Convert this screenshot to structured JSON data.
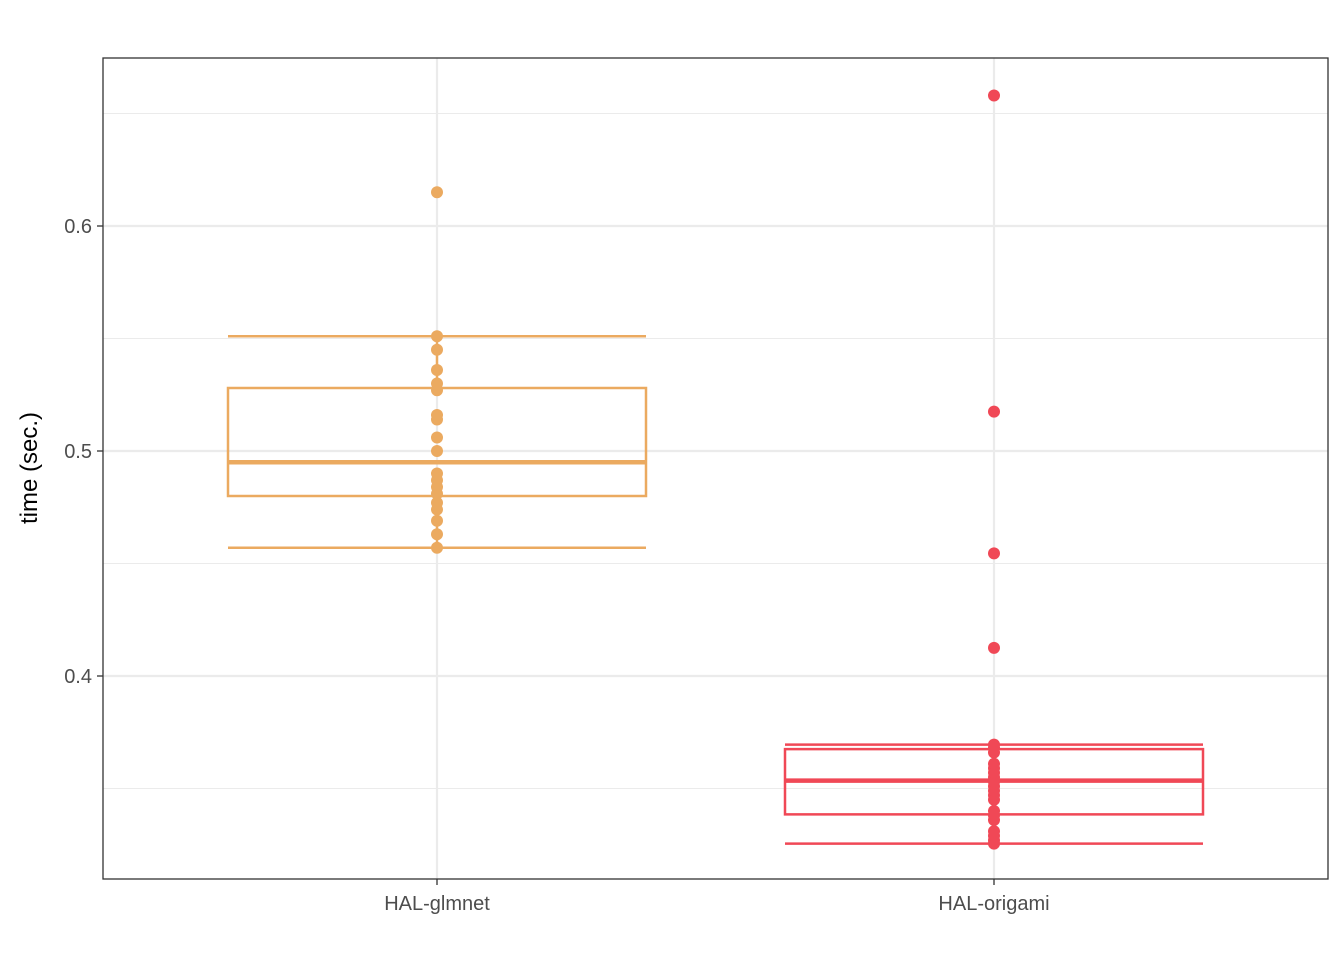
{
  "chart_data": {
    "type": "box",
    "title": "",
    "xlabel": "",
    "ylabel": "time (sec.)",
    "ylim": [
      0.32,
      0.684
    ],
    "yticks": [
      0.4,
      0.5,
      0.6
    ],
    "ytick_labels": [
      "0.4",
      "0.5",
      "0.6"
    ],
    "grid": true,
    "legend": "none",
    "categories": [
      "HAL-glmnet",
      "HAL-origami"
    ],
    "series": [
      {
        "color": "#EBAA60",
        "box": {
          "whisker_low": 0.457,
          "q1": 0.48,
          "median": 0.495,
          "q3": 0.528,
          "whisker_high": 0.551
        },
        "points": [
          0.457,
          0.463,
          0.469,
          0.474,
          0.477,
          0.481,
          0.484,
          0.487,
          0.49,
          0.5,
          0.506,
          0.514,
          0.516,
          0.527,
          0.53,
          0.536,
          0.545,
          0.551,
          0.615
        ]
      },
      {
        "color": "#F04856",
        "box": {
          "whisker_low": 0.3255,
          "q1": 0.3385,
          "median": 0.3535,
          "q3": 0.3675,
          "whisker_high": 0.3695
        },
        "points": [
          0.3255,
          0.327,
          0.329,
          0.331,
          0.336,
          0.338,
          0.34,
          0.345,
          0.347,
          0.349,
          0.351,
          0.353,
          0.355,
          0.357,
          0.359,
          0.361,
          0.366,
          0.368,
          0.3695,
          0.4125,
          0.4545,
          0.5175,
          0.658
        ]
      }
    ]
  }
}
